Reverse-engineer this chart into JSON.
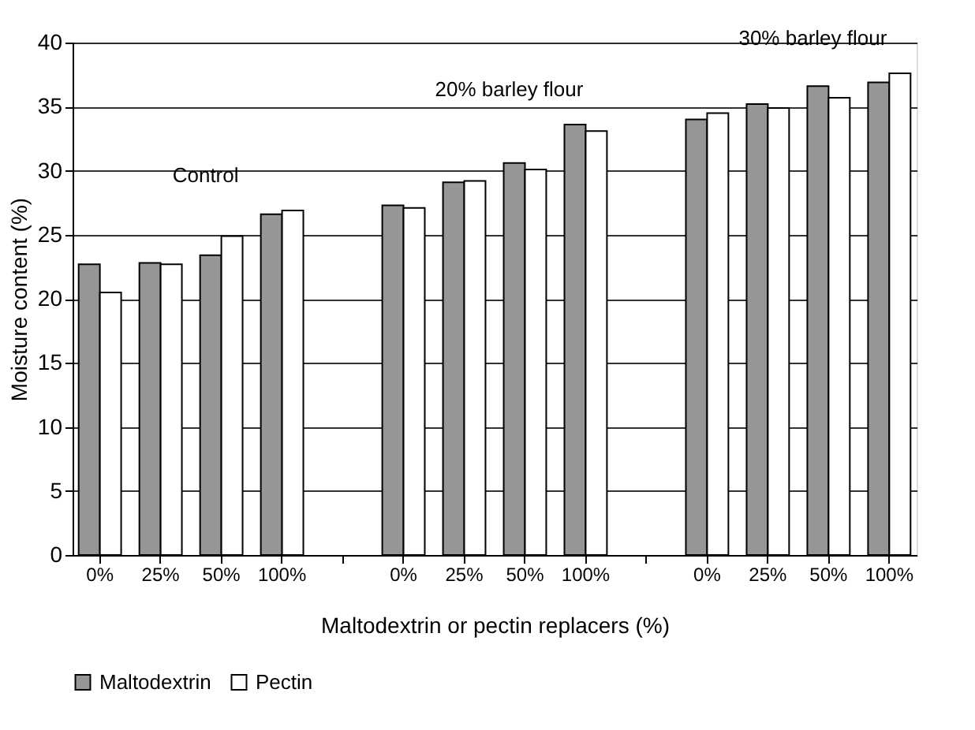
{
  "chart_data": {
    "type": "bar",
    "xlabel": "Maltodextrin or pectin replacers (%)",
    "ylabel": "Moisture content (%)",
    "categories": [
      "0%",
      "25%",
      "50%",
      "100%",
      null,
      "0%",
      "25%",
      "50%",
      "100%",
      null,
      "0%",
      "25%",
      "50%",
      "100%"
    ],
    "series": [
      {
        "name": "Maltodextrin",
        "color": "#969696",
        "values": [
          22.7,
          22.8,
          23.4,
          26.6,
          null,
          27.3,
          29.1,
          30.6,
          33.6,
          null,
          34.0,
          35.2,
          36.6,
          36.9
        ]
      },
      {
        "name": "Pectin",
        "color": "#ffffff",
        "values": [
          20.5,
          22.7,
          24.9,
          26.9,
          null,
          27.1,
          29.2,
          30.1,
          33.1,
          null,
          34.5,
          34.9,
          35.7,
          37.6
        ]
      }
    ],
    "annotations": [
      "Control",
      "20% barley flour",
      "30% barley flour"
    ],
    "ylim": [
      0,
      40
    ],
    "yticks": [
      0,
      5,
      10,
      15,
      20,
      25,
      30,
      35,
      40
    ],
    "grid": "y",
    "legend": "bottom"
  }
}
